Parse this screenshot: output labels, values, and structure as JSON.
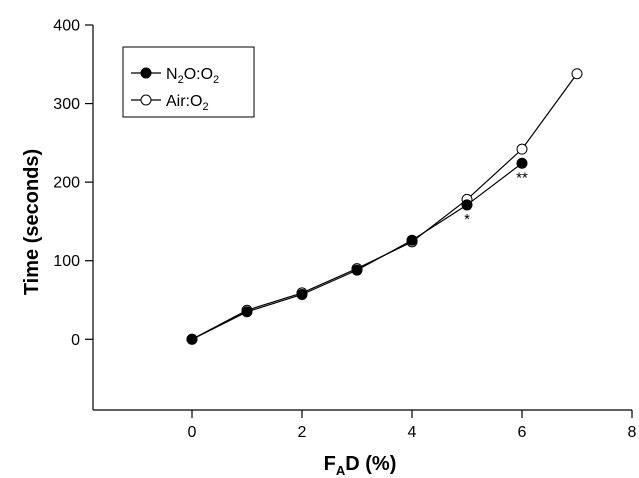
{
  "chart_data": {
    "type": "line",
    "title": "",
    "xlabel": {
      "main": "F",
      "sub": "A",
      "rest": "D (%)"
    },
    "ylabel": "Time (seconds)",
    "xlim": [
      -1.8,
      8
    ],
    "ylim": [
      -90,
      400
    ],
    "xticks": [
      0,
      2,
      4,
      6,
      8
    ],
    "yticks": [
      0,
      100,
      200,
      300,
      400
    ],
    "grid": false,
    "legend_position": "top-left",
    "series": [
      {
        "name": {
          "parts": [
            "N",
            "2",
            "O:O",
            "2"
          ]
        },
        "marker": "filled-circle",
        "x": [
          0,
          1,
          2,
          3,
          4,
          5,
          6
        ],
        "y": [
          0,
          35,
          57,
          88,
          126,
          171,
          224
        ]
      },
      {
        "name": {
          "parts": [
            "Air:O",
            "2"
          ]
        },
        "marker": "open-circle",
        "x": [
          0,
          1,
          2,
          3,
          4,
          5,
          6,
          7
        ],
        "y": [
          0,
          37,
          59,
          90,
          124,
          178,
          242,
          338
        ]
      }
    ],
    "annotations": [
      {
        "text": "*",
        "x": 5,
        "y": 171
      },
      {
        "text": "**",
        "x": 6,
        "y": 224
      }
    ]
  }
}
